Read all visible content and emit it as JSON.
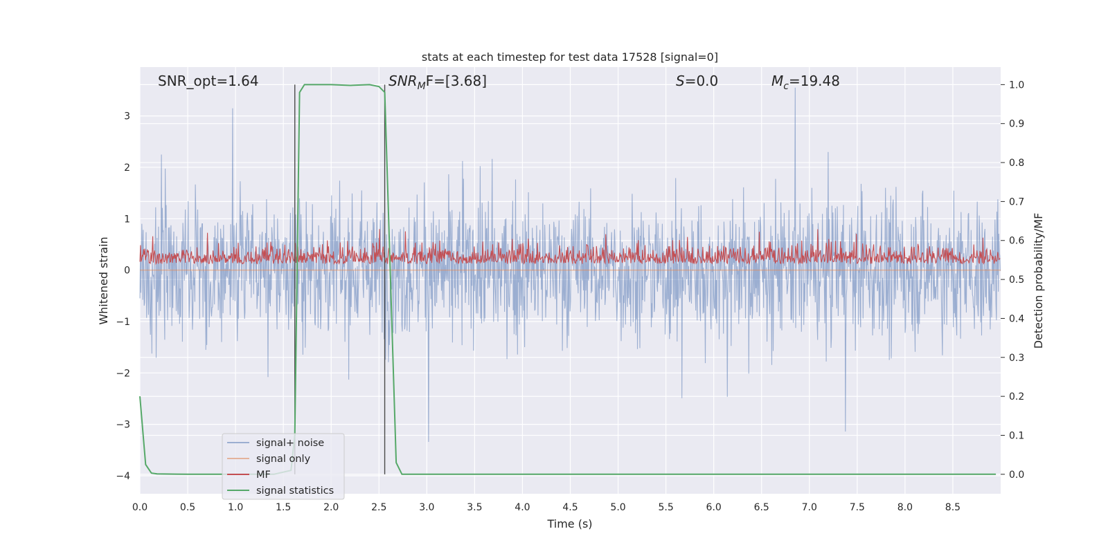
{
  "chart_data": {
    "type": "line",
    "title": "stats at each timestep for test data 17528 [signal=0]",
    "xlabel": "Time (s)",
    "ylabel_left": "Whitened strain",
    "ylabel_right": "Detection probability/MF",
    "xlim": [
      0.0,
      9.0
    ],
    "ylim_left": [
      -4.35,
      3.95
    ],
    "ylim_right": [
      -0.05,
      1.045
    ],
    "xticks": [
      "0.0",
      "0.5",
      "1.0",
      "1.5",
      "2.0",
      "2.5",
      "3.0",
      "3.5",
      "4.0",
      "4.5",
      "5.0",
      "5.5",
      "6.0",
      "6.5",
      "7.0",
      "7.5",
      "8.0",
      "8.5"
    ],
    "yticks_left": [
      "−4",
      "−3",
      "−2",
      "−1",
      "0",
      "1",
      "2",
      "3"
    ],
    "yticks_right": [
      "0.0",
      "0.1",
      "0.2",
      "0.3",
      "0.4",
      "0.5",
      "0.6",
      "0.7",
      "0.8",
      "0.9",
      "1.0"
    ],
    "grid": true,
    "legend_position": "lower-left",
    "annotations": {
      "snr_opt": "SNR_opt=1.64",
      "snr_mf_main": "SNR",
      "snr_mf_sub": "M",
      "snr_mf_rest": "F=[3.68]",
      "s_var": "S",
      "s_rest": "=0.0",
      "mc_var": "M",
      "mc_sub": "c",
      "mc_rest": "=19.48"
    },
    "vertical_lines_x": [
      1.62,
      2.56
    ],
    "series": [
      {
        "name": "signal+ noise",
        "color": "#4c72b0",
        "description_values": "noise, approx within [-4.0, 3.6] whitened strain"
      },
      {
        "name": "signal only",
        "color": "#dd8452",
        "values": "flat at 0"
      },
      {
        "name": "MF",
        "color": "#c44e52",
        "range_right_axis": [
          0.5,
          0.67
        ]
      },
      {
        "name": "signal statistics",
        "color": "#55a868",
        "x": [
          0.0,
          0.06,
          0.12,
          0.18,
          0.5,
          1.0,
          1.4,
          1.58,
          1.62,
          1.67,
          1.72,
          1.8,
          2.0,
          2.2,
          2.4,
          2.5,
          2.56,
          2.62,
          2.68,
          2.74,
          3.0,
          5.0,
          8.95
        ],
        "values": [
          0.2,
          0.025,
          0.003,
          0.001,
          0.0,
          0.0,
          0.0,
          0.01,
          0.1,
          0.98,
          1.0,
          1.0,
          1.0,
          0.998,
          1.0,
          0.995,
          0.98,
          0.5,
          0.03,
          0.0,
          0.0,
          0.0,
          0.0
        ]
      }
    ]
  }
}
